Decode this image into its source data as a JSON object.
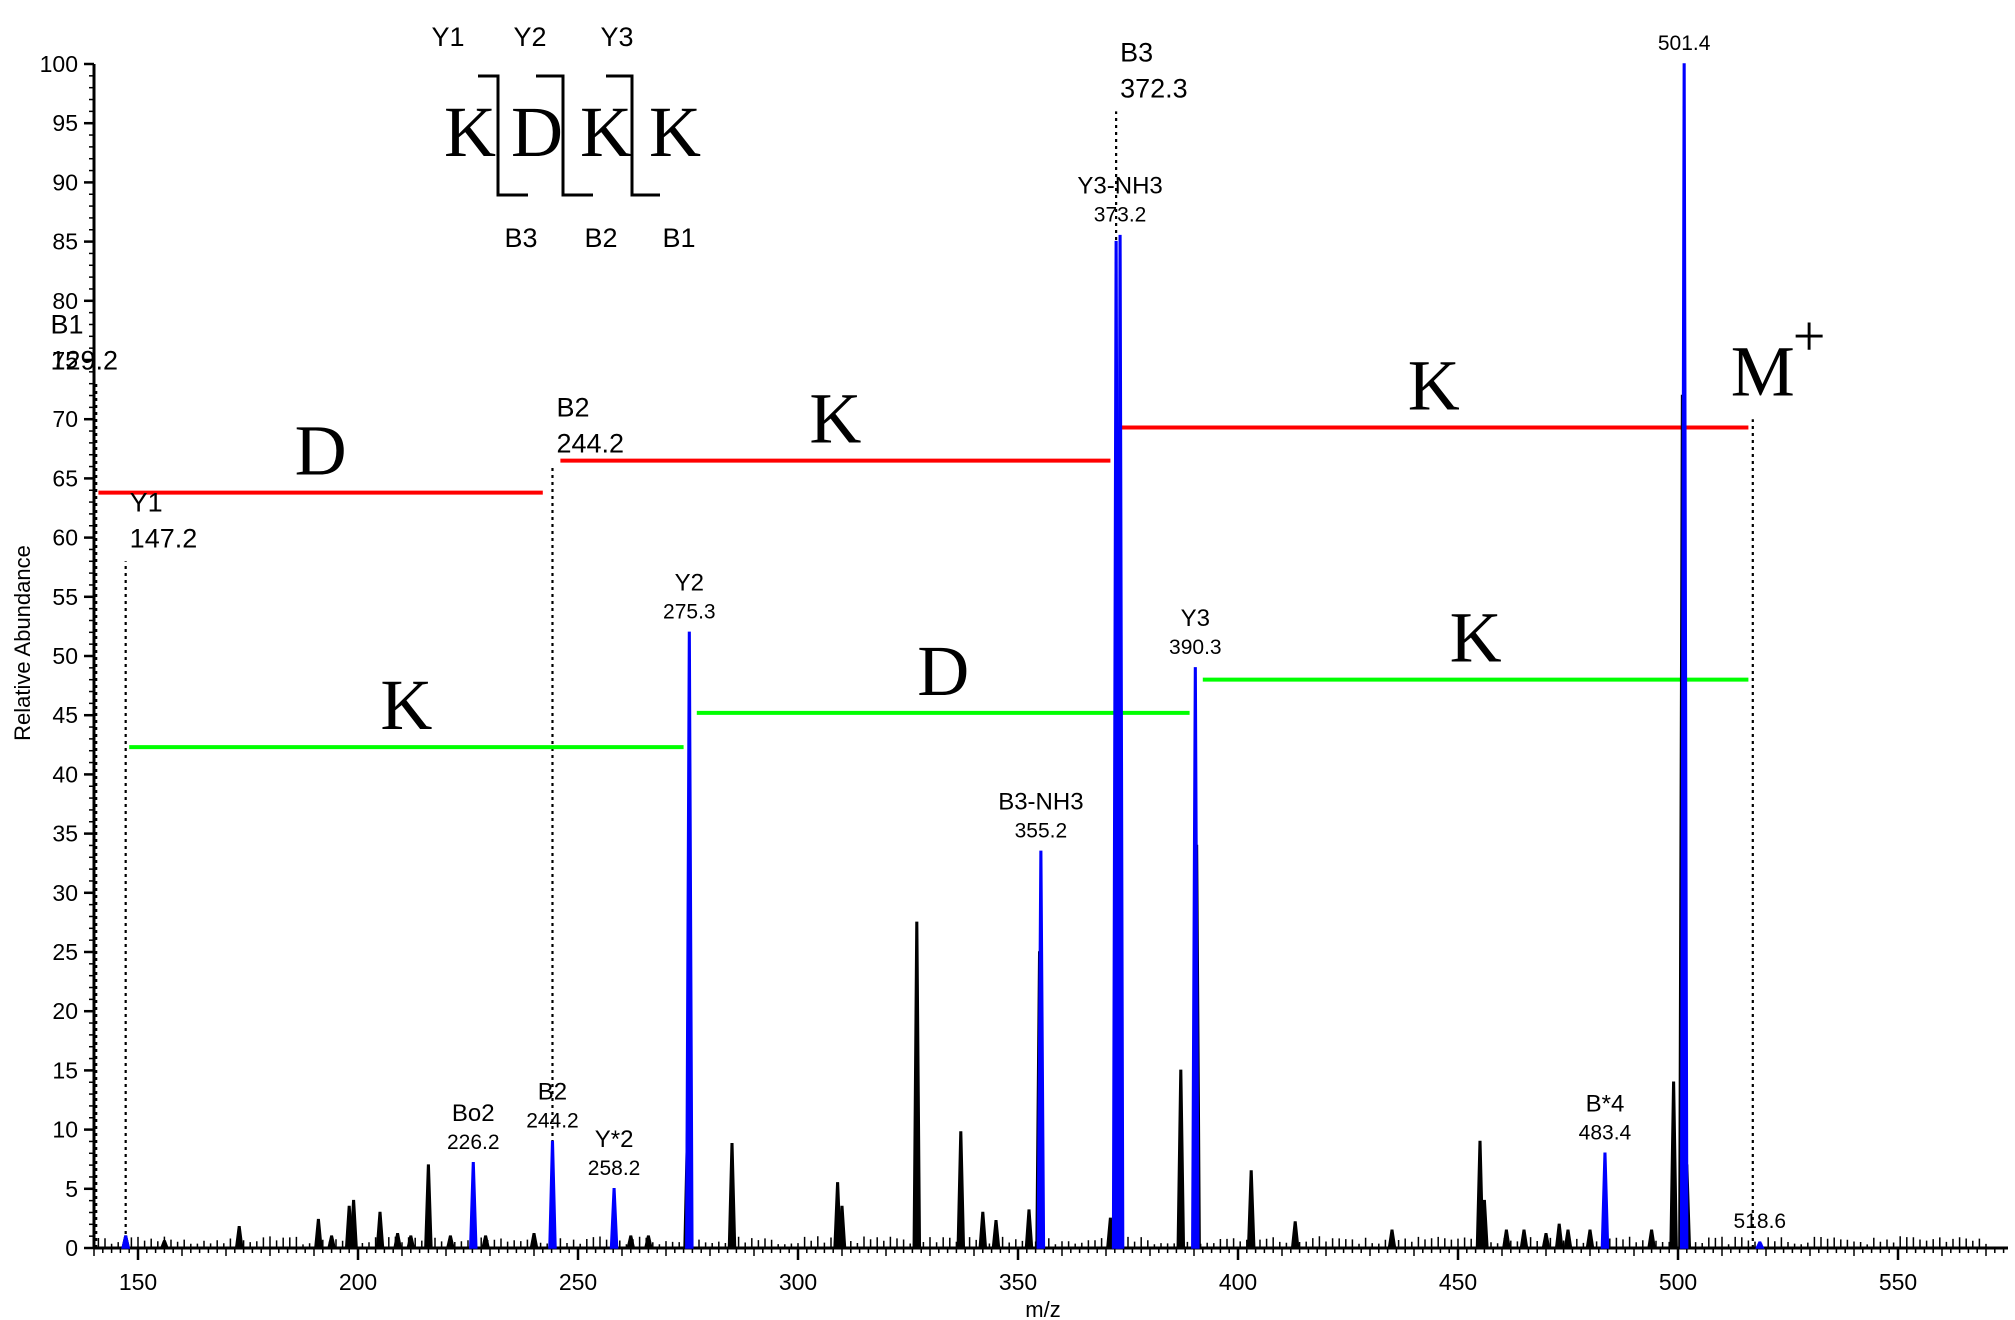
{
  "chart_data": {
    "type": "line",
    "title": "",
    "xlabel": "m/z",
    "ylabel": "Relative Abundance",
    "xlim": [
      140,
      575
    ],
    "ylim": [
      0,
      100
    ],
    "x_ticks": [
      150,
      200,
      250,
      300,
      350,
      400,
      450,
      500,
      550
    ],
    "y_ticks": [
      0,
      5,
      10,
      15,
      20,
      25,
      30,
      35,
      40,
      45,
      50,
      55,
      60,
      65,
      70,
      75,
      80,
      85,
      90,
      95,
      100
    ],
    "colors": {
      "spectrum": "#000000",
      "assigned_peak": "#0000ff",
      "b_ion_ladder": "#ff0000",
      "y_ion_ladder": "#00ff00"
    },
    "peaks_black": [
      [
        147.2,
        1.0
      ],
      [
        156.0,
        0.6
      ],
      [
        173.0,
        1.8
      ],
      [
        191.0,
        2.4
      ],
      [
        194.0,
        1.0
      ],
      [
        198.0,
        3.5
      ],
      [
        199.0,
        4.0
      ],
      [
        205.0,
        3.0
      ],
      [
        209.0,
        1.2
      ],
      [
        212.0,
        1.0
      ],
      [
        216.0,
        7.0
      ],
      [
        221.0,
        1.0
      ],
      [
        229.0,
        1.0
      ],
      [
        240.0,
        1.2
      ],
      [
        262.0,
        1.0
      ],
      [
        266.0,
        1.0
      ],
      [
        274.9,
        10.0
      ],
      [
        285.0,
        8.8
      ],
      [
        309.0,
        5.5
      ],
      [
        310.0,
        3.5
      ],
      [
        327.0,
        27.5
      ],
      [
        337.0,
        9.8
      ],
      [
        342.0,
        3.0
      ],
      [
        345.0,
        2.3
      ],
      [
        352.5,
        3.2
      ],
      [
        354.9,
        25.0
      ],
      [
        371.0,
        2.5
      ],
      [
        373.0,
        24.0
      ],
      [
        387.0,
        15.0
      ],
      [
        390.6,
        34.0
      ],
      [
        403.0,
        6.5
      ],
      [
        413.0,
        2.2
      ],
      [
        435.0,
        1.5
      ],
      [
        455.0,
        9.0
      ],
      [
        456.0,
        4.0
      ],
      [
        461.0,
        1.5
      ],
      [
        465.0,
        1.5
      ],
      [
        470.0,
        1.2
      ],
      [
        473.0,
        2.0
      ],
      [
        475.0,
        1.5
      ],
      [
        480.0,
        1.5
      ],
      [
        494.0,
        1.5
      ],
      [
        499.0,
        14.0
      ],
      [
        501.0,
        72.0
      ],
      [
        502.0,
        7.0
      ]
    ],
    "peaks_blue": [
      [
        147.2,
        1.0
      ],
      [
        226.2,
        7.2
      ],
      [
        244.2,
        9.0
      ],
      [
        258.2,
        5.0
      ],
      [
        275.3,
        52.0
      ],
      [
        355.2,
        33.5
      ],
      [
        372.3,
        85.0
      ],
      [
        373.2,
        85.5
      ],
      [
        390.3,
        49.0
      ],
      [
        483.4,
        8.0
      ],
      [
        501.4,
        100.0
      ],
      [
        518.6,
        0.5
      ]
    ],
    "peak_labels": [
      {
        "ion": "B1",
        "mz": "129.2",
        "x": 129.2,
        "y": 73
      },
      {
        "ion": "Y1",
        "mz": "147.2",
        "x": 147.2,
        "y": 58
      },
      {
        "ion": "B2",
        "mz": "244.2",
        "x": 244.2,
        "y": 66
      },
      {
        "ion": "Y2",
        "mz": "275.3",
        "x": 275.3,
        "y": 52
      },
      {
        "ion": "B3",
        "mz": "372.3",
        "x": 372.3,
        "y": 96
      },
      {
        "ion": "Y3-NH3",
        "mz": "373.2",
        "x": 373.2,
        "y": 85.5
      },
      {
        "ion": "Y3",
        "mz": "390.3",
        "x": 390.3,
        "y": 49
      },
      {
        "ion": "B3-NH3",
        "mz": "355.2",
        "x": 355.2,
        "y": 33.5
      },
      {
        "ion": "Bo2",
        "mz": "226.2",
        "x": 226.2,
        "y": 7.2
      },
      {
        "ion": "B2",
        "mz": "244.2",
        "x": 244.2,
        "y": 9
      },
      {
        "ion": "Y*2",
        "mz": "258.2",
        "x": 258.2,
        "y": 5
      },
      {
        "ion": "B*4",
        "mz": "483.4",
        "x": 483.4,
        "y": 8
      },
      {
        "ion": "",
        "mz": "501.4",
        "x": 501.4,
        "y": 100
      },
      {
        "ion": "",
        "mz": "518.6",
        "x": 518.6,
        "y": 0.5
      }
    ],
    "dotted_markers": [
      {
        "x": 140.5,
        "y": 73
      },
      {
        "x": 147.2,
        "y": 58
      },
      {
        "x": 244.2,
        "y": 66
      },
      {
        "x": 372.3,
        "y": 96
      },
      {
        "x": 517.0,
        "y": 70
      }
    ],
    "b_ladder": [
      {
        "residue": "D",
        "x1": 141,
        "x2": 242,
        "y": 63.8
      },
      {
        "residue": "K",
        "x1": 246,
        "x2": 371,
        "y": 66.5
      },
      {
        "residue": "K",
        "x1": 373,
        "x2": 516,
        "y": 69.3
      }
    ],
    "y_ladder": [
      {
        "residue": "K",
        "x1": 148,
        "x2": 274,
        "y": 42.3
      },
      {
        "residue": "D",
        "x1": 277,
        "x2": 389,
        "y": 45.2
      },
      {
        "residue": "K",
        "x1": 392,
        "x2": 516,
        "y": 48.0
      }
    ],
    "molecular_ion": {
      "label": "M",
      "superscript": "+",
      "x": 512,
      "y": 72
    }
  },
  "sequence": {
    "residues": [
      "K",
      "D",
      "K",
      "K"
    ],
    "y_ions": [
      "Y1",
      "Y2",
      "Y3"
    ],
    "b_ions": [
      "B3",
      "B2",
      "B1"
    ]
  }
}
